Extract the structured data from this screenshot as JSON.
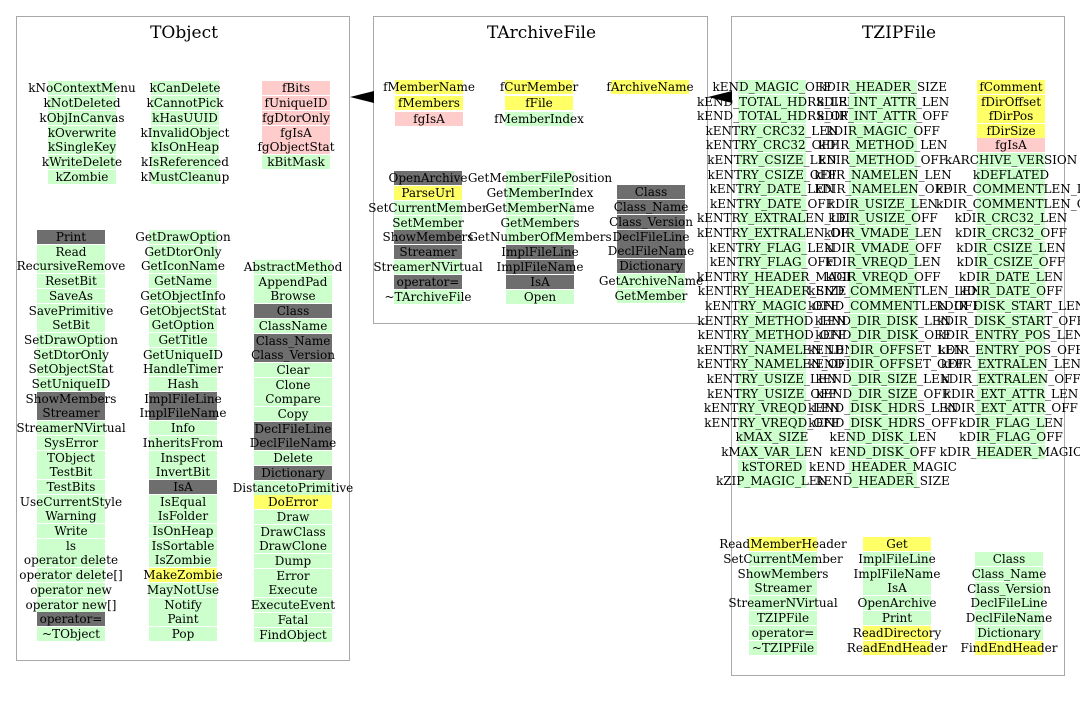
{
  "colors": {
    "green": "#ccffcc",
    "pink": "#ffcccc",
    "yellow": "#ffff66",
    "dark": "#6e6e6e",
    "border": "#a8a8a8"
  },
  "classes": [
    {
      "title": "TObject",
      "columns": [
        [
          [
            "kNoContextMenu",
            "g"
          ],
          [
            "kNotDeleted",
            "g"
          ],
          [
            "kObjInCanvas",
            "g"
          ],
          [
            "kOverwrite",
            "g"
          ],
          [
            "kSingleKey",
            "g"
          ],
          [
            "kWriteDelete",
            "g"
          ],
          [
            "kZombie",
            "g"
          ]
        ],
        [
          [
            "kCanDelete",
            "g"
          ],
          [
            "kCannotPick",
            "g"
          ],
          [
            "kHasUUID",
            "g"
          ],
          [
            "kInvalidObject",
            "g"
          ],
          [
            "kIsOnHeap",
            "g"
          ],
          [
            "kIsReferenced",
            "g"
          ],
          [
            "kMustCleanup",
            "g"
          ]
        ],
        [
          [
            "fBits",
            "p"
          ],
          [
            "fUniqueID",
            "p"
          ],
          [
            "fgDtorOnly",
            "p"
          ],
          [
            "fgIsA",
            "p"
          ],
          [
            "fgObjectStat",
            "p"
          ],
          [
            "kBitMask",
            "g"
          ]
        ],
        [
          [
            "Print",
            "d"
          ],
          [
            "Read",
            "g"
          ],
          [
            "RecursiveRemove",
            "g"
          ],
          [
            "ResetBit",
            "g"
          ],
          [
            "SaveAs",
            "g"
          ],
          [
            "SavePrimitive",
            "g"
          ],
          [
            "SetBit",
            "g"
          ],
          [
            "SetDrawOption",
            "g"
          ],
          [
            "SetDtorOnly",
            "g"
          ],
          [
            "SetObjectStat",
            "g"
          ],
          [
            "SetUniqueID",
            "g"
          ],
          [
            "ShowMembers",
            "d"
          ],
          [
            "Streamer",
            "d"
          ],
          [
            "StreamerNVirtual",
            "g"
          ],
          [
            "SysError",
            "g"
          ],
          [
            "TObject",
            "g"
          ],
          [
            "TestBit",
            "g"
          ],
          [
            "TestBits",
            "g"
          ],
          [
            "UseCurrentStyle",
            "g"
          ],
          [
            "Warning",
            "g"
          ],
          [
            "Write",
            "g"
          ],
          [
            "ls",
            "g"
          ],
          [
            "operator delete",
            "g"
          ],
          [
            "operator delete[]",
            "g"
          ],
          [
            "operator new",
            "g"
          ],
          [
            "operator new[]",
            "g"
          ],
          [
            "operator=",
            "d"
          ],
          [
            "~TObject",
            "g"
          ]
        ],
        [
          [
            "GetDrawOption",
            "g"
          ],
          [
            "GetDtorOnly",
            "g"
          ],
          [
            "GetIconName",
            "g"
          ],
          [
            "GetName",
            "g"
          ],
          [
            "GetObjectInfo",
            "g"
          ],
          [
            "GetObjectStat",
            "g"
          ],
          [
            "GetOption",
            "g"
          ],
          [
            "GetTitle",
            "g"
          ],
          [
            "GetUniqueID",
            "g"
          ],
          [
            "HandleTimer",
            "g"
          ],
          [
            "Hash",
            "g"
          ],
          [
            "ImplFileLine",
            "d"
          ],
          [
            "ImplFileName",
            "d"
          ],
          [
            "Info",
            "g"
          ],
          [
            "InheritsFrom",
            "g"
          ],
          [
            "Inspect",
            "g"
          ],
          [
            "InvertBit",
            "g"
          ],
          [
            "IsA",
            "d"
          ],
          [
            "IsEqual",
            "g"
          ],
          [
            "IsFolder",
            "g"
          ],
          [
            "IsOnHeap",
            "g"
          ],
          [
            "IsSortable",
            "g"
          ],
          [
            "IsZombie",
            "g"
          ],
          [
            "MakeZombie",
            "y"
          ],
          [
            "MayNotUse",
            "g"
          ],
          [
            "Notify",
            "g"
          ],
          [
            "Paint",
            "g"
          ],
          [
            "Pop",
            "g"
          ]
        ],
        [
          [
            "AbstractMethod",
            "g"
          ],
          [
            "AppendPad",
            "g"
          ],
          [
            "Browse",
            "g"
          ],
          [
            "Class",
            "d"
          ],
          [
            "ClassName",
            "g"
          ],
          [
            "Class_Name",
            "d"
          ],
          [
            "Class_Version",
            "d"
          ],
          [
            "Clear",
            "g"
          ],
          [
            "Clone",
            "g"
          ],
          [
            "Compare",
            "g"
          ],
          [
            "Copy",
            "g"
          ],
          [
            "DeclFileLine",
            "d"
          ],
          [
            "DeclFileName",
            "d"
          ],
          [
            "Delete",
            "g"
          ],
          [
            "Dictionary",
            "d"
          ],
          [
            "DistancetoPrimitive",
            "g"
          ],
          [
            "DoError",
            "y"
          ],
          [
            "Draw",
            "g"
          ],
          [
            "DrawClass",
            "g"
          ],
          [
            "DrawClone",
            "g"
          ],
          [
            "Dump",
            "g"
          ],
          [
            "Error",
            "g"
          ],
          [
            "Execute",
            "g"
          ],
          [
            "ExecuteEvent",
            "g"
          ],
          [
            "Fatal",
            "g"
          ],
          [
            "FindObject",
            "g"
          ]
        ]
      ]
    },
    {
      "title": "TArchiveFile",
      "columns": [
        [
          [
            "fMemberName",
            "y"
          ],
          [
            "fMembers",
            "y"
          ],
          [
            "fgIsA",
            "p"
          ]
        ],
        [
          [
            "fCurMember",
            "y"
          ],
          [
            "fFile",
            "y"
          ],
          [
            "fMemberIndex",
            "g"
          ]
        ],
        [
          [
            "fArchiveName",
            "y"
          ]
        ],
        [
          [
            "OpenArchive",
            "d"
          ],
          [
            "ParseUrl",
            "y"
          ],
          [
            "SetCurrentMember",
            "g"
          ],
          [
            "SetMember",
            "g"
          ],
          [
            "ShowMembers",
            "d"
          ],
          [
            "Streamer",
            "d"
          ],
          [
            "StreamerNVirtual",
            "g"
          ],
          [
            "operator=",
            "d"
          ],
          [
            "~TArchiveFile",
            "g"
          ]
        ],
        [
          [
            "GetMemberFilePosition",
            "g"
          ],
          [
            "GetMemberIndex",
            "g"
          ],
          [
            "GetMemberName",
            "g"
          ],
          [
            "GetMembers",
            "g"
          ],
          [
            "GetNumberOfMembers",
            "g"
          ],
          [
            "ImplFileLine",
            "d"
          ],
          [
            "ImplFileName",
            "d"
          ],
          [
            "IsA",
            "d"
          ],
          [
            "Open",
            "g"
          ]
        ],
        [
          [
            "Class",
            "d"
          ],
          [
            "Class_Name",
            "d"
          ],
          [
            "Class_Version",
            "d"
          ],
          [
            "DeclFileLine",
            "d"
          ],
          [
            "DeclFileName",
            "d"
          ],
          [
            "Dictionary",
            "d"
          ],
          [
            "GetArchiveName",
            "g"
          ],
          [
            "GetMember",
            "g"
          ]
        ]
      ]
    },
    {
      "title": "TZIPFile",
      "columns": [
        [
          [
            "kEND_MAGIC_OFF",
            "g"
          ],
          [
            "kEND_TOTAL_HDRS_LEN",
            "g"
          ],
          [
            "kEND_TOTAL_HDRS_OFF",
            "g"
          ],
          [
            "kENTRY_CRC32_LEN",
            "g"
          ],
          [
            "kENTRY_CRC32_OFF",
            "g"
          ],
          [
            "kENTRY_CSIZE_LEN",
            "g"
          ],
          [
            "kENTRY_CSIZE_OFF",
            "g"
          ],
          [
            "kENTRY_DATE_LEN",
            "g"
          ],
          [
            "kENTRY_DATE_OFF",
            "g"
          ],
          [
            "kENTRY_EXTRALEN_LEN",
            "g"
          ],
          [
            "kENTRY_EXTRALEN_OFF",
            "g"
          ],
          [
            "kENTRY_FLAG_LEN",
            "g"
          ],
          [
            "kENTRY_FLAG_OFF",
            "g"
          ],
          [
            "kENTRY_HEADER_MAGIC",
            "g"
          ],
          [
            "kENTRY_HEADER_SIZE",
            "g"
          ],
          [
            "kENTRY_MAGIC_OFF",
            "g"
          ],
          [
            "kENTRY_METHOD_LEN",
            "g"
          ],
          [
            "kENTRY_METHOD_OFF",
            "g"
          ],
          [
            "kENTRY_NAMELEN_LEN",
            "g"
          ],
          [
            "kENTRY_NAMELEN_OFF",
            "g"
          ],
          [
            "kENTRY_USIZE_LEN",
            "g"
          ],
          [
            "kENTRY_USIZE_OFF",
            "g"
          ],
          [
            "kENTRY_VREQD_LEN",
            "g"
          ],
          [
            "kENTRY_VREQD_OFF",
            "g"
          ],
          [
            "kMAX_SIZE",
            "g"
          ],
          [
            "kMAX_VAR_LEN",
            "g"
          ],
          [
            "kSTORED",
            "g"
          ],
          [
            "kZIP_MAGIC_LEN",
            "g"
          ]
        ],
        [
          [
            "kDIR_HEADER_SIZE",
            "g"
          ],
          [
            "kDIR_INT_ATTR_LEN",
            "g"
          ],
          [
            "kDIR_INT_ATTR_OFF",
            "g"
          ],
          [
            "kDIR_MAGIC_OFF",
            "g"
          ],
          [
            "kDIR_METHOD_LEN",
            "g"
          ],
          [
            "kDIR_METHOD_OFF",
            "g"
          ],
          [
            "kDIR_NAMELEN_LEN",
            "g"
          ],
          [
            "kDIR_NAMELEN_OFF",
            "g"
          ],
          [
            "kDIR_USIZE_LEN",
            "g"
          ],
          [
            "kDIR_USIZE_OFF",
            "g"
          ],
          [
            "kDIR_VMADE_LEN",
            "g"
          ],
          [
            "kDIR_VMADE_OFF",
            "g"
          ],
          [
            "kDIR_VREQD_LEN",
            "g"
          ],
          [
            "kDIR_VREQD_OFF",
            "g"
          ],
          [
            "kEND_COMMENTLEN_LEN",
            "g"
          ],
          [
            "kEND_COMMENTLEN_OFF",
            "g"
          ],
          [
            "kEND_DIR_DISK_LEN",
            "g"
          ],
          [
            "kEND_DIR_DISK_OFF",
            "g"
          ],
          [
            "kEND_DIR_OFFSET_LEN",
            "g"
          ],
          [
            "kEND_DIR_OFFSET_OFF",
            "g"
          ],
          [
            "kEND_DIR_SIZE_LEN",
            "g"
          ],
          [
            "kEND_DIR_SIZE_OFF",
            "g"
          ],
          [
            "kEND_DISK_HDRS_LEN",
            "g"
          ],
          [
            "kEND_DISK_HDRS_OFF",
            "g"
          ],
          [
            "kEND_DISK_LEN",
            "g"
          ],
          [
            "kEND_DISK_OFF",
            "g"
          ],
          [
            "kEND_HEADER_MAGIC",
            "g"
          ],
          [
            "kEND_HEADER_SIZE",
            "g"
          ]
        ],
        [
          [
            "fComment",
            "y"
          ],
          [
            "fDirOffset",
            "y"
          ],
          [
            "fDirPos",
            "y"
          ],
          [
            "fDirSize",
            "y"
          ],
          [
            "fgIsA",
            "p"
          ],
          [
            "kARCHIVE_VERSION",
            "g"
          ],
          [
            "kDEFLATED",
            "g"
          ],
          [
            "kDIR_COMMENTLEN_LEN",
            "g"
          ],
          [
            "kDIR_COMMENTLEN_OFF",
            "g"
          ],
          [
            "kDIR_CRC32_LEN",
            "g"
          ],
          [
            "kDIR_CRC32_OFF",
            "g"
          ],
          [
            "kDIR_CSIZE_LEN",
            "g"
          ],
          [
            "kDIR_CSIZE_OFF",
            "g"
          ],
          [
            "kDIR_DATE_LEN",
            "g"
          ],
          [
            "kDIR_DATE_OFF",
            "g"
          ],
          [
            "kDIR_DISK_START_LEN",
            "g"
          ],
          [
            "kDIR_DISK_START_OFF",
            "g"
          ],
          [
            "kDIR_ENTRY_POS_LEN",
            "g"
          ],
          [
            "kDIR_ENTRY_POS_OFF",
            "g"
          ],
          [
            "kDIR_EXTRALEN_LEN",
            "g"
          ],
          [
            "kDIR_EXTRALEN_OFF",
            "g"
          ],
          [
            "kDIR_EXT_ATTR_LEN",
            "g"
          ],
          [
            "kDIR_EXT_ATTR_OFF",
            "g"
          ],
          [
            "kDIR_FLAG_LEN",
            "g"
          ],
          [
            "kDIR_FLAG_OFF",
            "g"
          ],
          [
            "kDIR_HEADER_MAGIC",
            "g"
          ]
        ],
        [
          [
            "ReadMemberHeader",
            "y"
          ],
          [
            "SetCurrentMember",
            "g"
          ],
          [
            "ShowMembers",
            "g"
          ],
          [
            "Streamer",
            "g"
          ],
          [
            "StreamerNVirtual",
            "g"
          ],
          [
            "TZIPFile",
            "g"
          ],
          [
            "operator=",
            "g"
          ],
          [
            "~TZIPFile",
            "g"
          ]
        ],
        [
          [
            "Get",
            "y"
          ],
          [
            "ImplFileLine",
            "g"
          ],
          [
            "ImplFileName",
            "g"
          ],
          [
            "IsA",
            "g"
          ],
          [
            "OpenArchive",
            "g"
          ],
          [
            "Print",
            "g"
          ],
          [
            "ReadDirectory",
            "y"
          ],
          [
            "ReadEndHeader",
            "y"
          ]
        ],
        [
          [
            "Class",
            "g"
          ],
          [
            "Class_Name",
            "g"
          ],
          [
            "Class_Version",
            "g"
          ],
          [
            "DeclFileLine",
            "g"
          ],
          [
            "DeclFileName",
            "g"
          ],
          [
            "Dictionary",
            "g"
          ],
          [
            "FindEndHeader",
            "y"
          ]
        ]
      ]
    }
  ]
}
